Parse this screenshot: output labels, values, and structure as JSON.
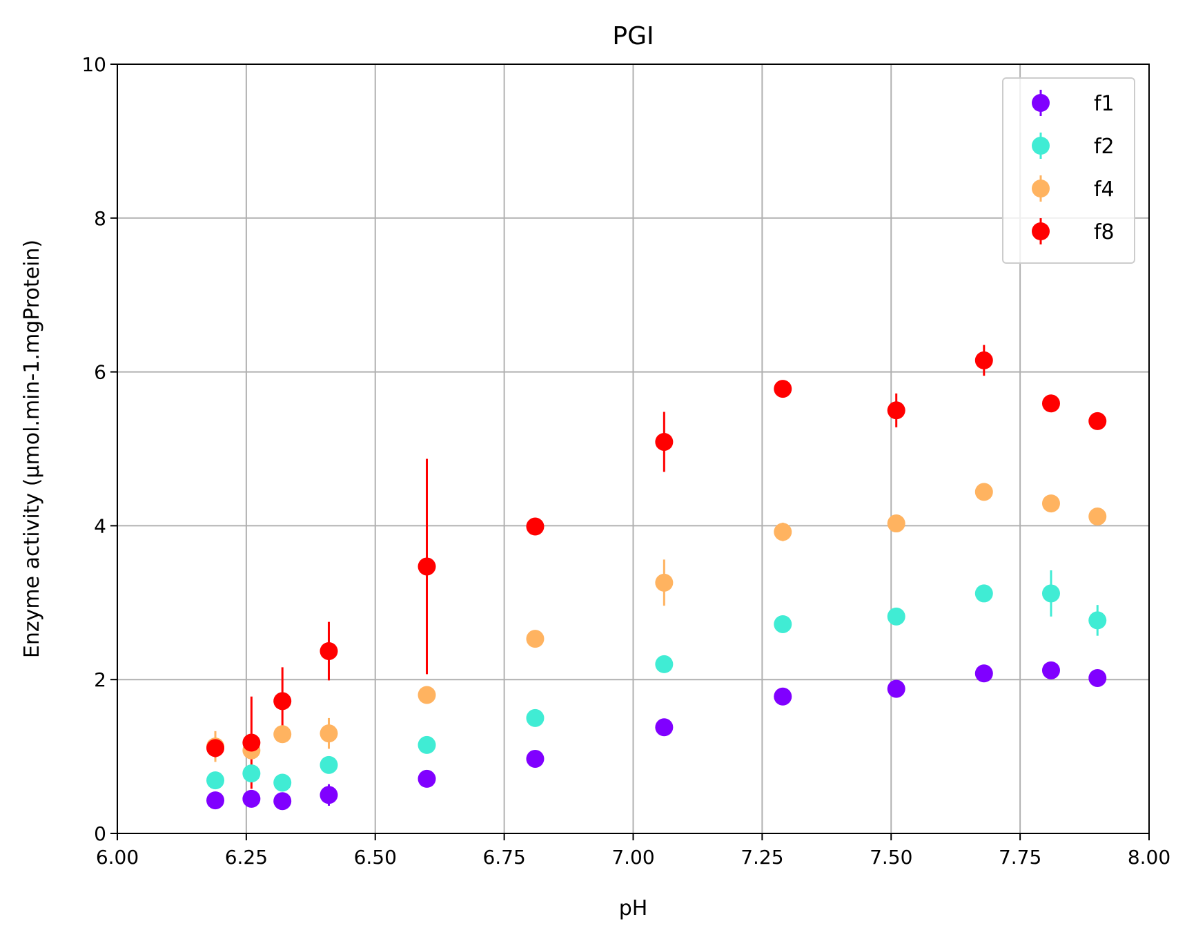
{
  "chart_data": {
    "type": "scatter",
    "title": "PGI",
    "xlabel": "pH",
    "ylabel": "Enzyme activity (μmol.min-1.mgProtein)",
    "xlim": [
      6.0,
      8.0
    ],
    "ylim": [
      0,
      10
    ],
    "xticks": [
      6.0,
      6.25,
      6.5,
      6.75,
      7.0,
      7.25,
      7.5,
      7.75,
      8.0
    ],
    "xtick_labels": [
      "6.00",
      "6.25",
      "6.50",
      "6.75",
      "7.00",
      "7.25",
      "7.50",
      "7.75",
      "8.00"
    ],
    "yticks": [
      0,
      2,
      4,
      6,
      8,
      10
    ],
    "ytick_labels": [
      "0",
      "2",
      "4",
      "6",
      "8",
      "10"
    ],
    "grid": true,
    "legend_position": "top-right",
    "x": [
      6.19,
      6.26,
      6.32,
      6.41,
      6.6,
      6.81,
      7.06,
      7.29,
      7.51,
      7.68,
      7.81,
      7.9
    ],
    "series": [
      {
        "name": "f1",
        "color": "#8000ff",
        "values": [
          0.43,
          0.45,
          0.42,
          0.5,
          0.71,
          0.97,
          1.38,
          1.78,
          1.88,
          2.08,
          2.12,
          2.02
        ],
        "errors": [
          0.04,
          0.04,
          0.04,
          0.14,
          0.03,
          0.03,
          0.03,
          0.03,
          0.03,
          0.03,
          0.03,
          0.03
        ]
      },
      {
        "name": "f2",
        "color": "#40ecd4",
        "values": [
          0.69,
          0.78,
          0.66,
          0.89,
          1.15,
          1.5,
          2.2,
          2.72,
          2.82,
          3.12,
          3.12,
          2.77
        ],
        "errors": [
          0.04,
          0.05,
          0.04,
          0.05,
          0.04,
          0.04,
          0.04,
          0.04,
          0.04,
          0.04,
          0.3,
          0.2
        ]
      },
      {
        "name": "f4",
        "color": "#ffb360",
        "values": [
          1.13,
          1.08,
          1.29,
          1.3,
          1.8,
          2.53,
          3.26,
          3.92,
          4.03,
          4.44,
          4.29,
          4.12
        ],
        "errors": [
          0.2,
          0.1,
          0.04,
          0.2,
          0.04,
          0.04,
          0.3,
          0.12,
          0.04,
          0.04,
          0.04,
          0.04
        ]
      },
      {
        "name": "f8",
        "color": "#ff0000",
        "values": [
          1.11,
          1.18,
          1.72,
          2.37,
          3.47,
          3.99,
          5.09,
          5.78,
          5.5,
          6.15,
          5.59,
          5.36
        ],
        "errors": [
          0.12,
          0.6,
          0.44,
          0.38,
          1.4,
          0.04,
          0.39,
          0.04,
          0.22,
          0.2,
          0.04,
          0.08
        ]
      }
    ]
  }
}
